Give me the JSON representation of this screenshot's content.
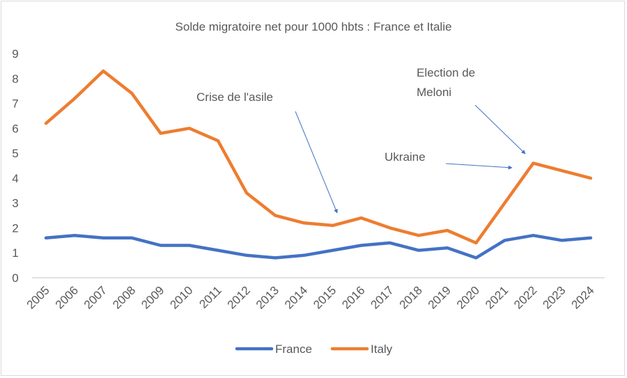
{
  "chart_data": {
    "type": "line",
    "title": "Solde migratoire net pour 1000 hbts : France et Italie",
    "xlabel": "",
    "ylabel": "",
    "ylim": [
      0,
      9
    ],
    "yticks": [
      "0",
      "1",
      "2",
      "3",
      "4",
      "5",
      "6",
      "7",
      "8",
      "9"
    ],
    "grid": false,
    "legend_position": "bottom",
    "x": [
      "2005",
      "2006",
      "2007",
      "2008",
      "2009",
      "2010",
      "2011",
      "2012",
      "2013",
      "2014",
      "2015",
      "2016",
      "2017",
      "2018",
      "2019",
      "2020",
      "2021",
      "2022",
      "2023",
      "2024"
    ],
    "series": [
      {
        "name": "France",
        "color": "#4472c4",
        "values": [
          1.6,
          1.7,
          1.6,
          1.6,
          1.3,
          1.3,
          1.1,
          0.9,
          0.8,
          0.9,
          1.1,
          1.3,
          1.4,
          1.1,
          1.2,
          0.8,
          1.5,
          1.7,
          1.5,
          1.6
        ]
      },
      {
        "name": "Italy",
        "color": "#ed7d31",
        "values": [
          6.2,
          7.2,
          8.3,
          7.4,
          5.8,
          6.0,
          5.5,
          3.4,
          2.5,
          2.2,
          2.1,
          2.4,
          2.0,
          1.7,
          1.9,
          1.4,
          3.0,
          4.6,
          4.3,
          4.0
        ]
      }
    ],
    "annotations": [
      {
        "text": "Crise de l'asile",
        "target_year": "2015"
      },
      {
        "text": "Ukraine",
        "target_year": "2022"
      },
      {
        "text_lines": [
          "Election de",
          "Meloni"
        ],
        "target_year": "2022"
      }
    ]
  }
}
